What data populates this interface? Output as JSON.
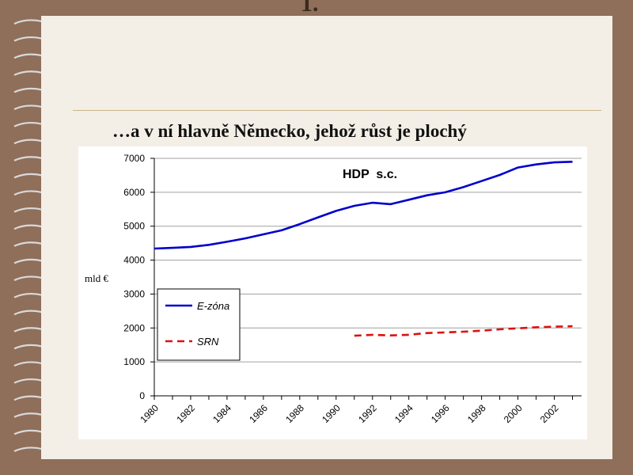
{
  "slide": {
    "title": "1.",
    "subtitle": "…a v ní hlavně Německo, jehož růst je plochý"
  },
  "colors": {
    "background": "#8f6e5a",
    "page": "#f3efe6",
    "ezone": "#0000cc",
    "srn": "#dd1111"
  },
  "chart_data": {
    "type": "line",
    "title": "HDP  s.c.",
    "ylabel": "mld €",
    "xlabel": "",
    "ylim": [
      0,
      7000
    ],
    "yticks": [
      "0",
      "1000",
      "2000",
      "3000",
      "4000",
      "5000",
      "6000",
      "7000"
    ],
    "xlim": [
      1980,
      2003
    ],
    "xticks": [
      "1980",
      "1982",
      "1984",
      "1986",
      "1988",
      "1990",
      "1992",
      "1994",
      "1996",
      "1998",
      "2000",
      "2002"
    ],
    "grid": true,
    "legend_position": "left-middle",
    "series": [
      {
        "name": "E-zóna",
        "style": "solid",
        "color": "#0000cc",
        "x": [
          1980,
          1981,
          1982,
          1983,
          1984,
          1985,
          1986,
          1987,
          1988,
          1989,
          1990,
          1991,
          1992,
          1993,
          1994,
          1995,
          1996,
          1997,
          1998,
          1999,
          2000,
          2001,
          2002,
          2003
        ],
        "y": [
          4340,
          4360,
          4390,
          4450,
          4540,
          4640,
          4760,
          4880,
          5060,
          5260,
          5450,
          5600,
          5690,
          5650,
          5780,
          5910,
          6000,
          6150,
          6330,
          6510,
          6730,
          6820,
          6880,
          6900
        ]
      },
      {
        "name": "SRN",
        "style": "dashed",
        "color": "#dd1111",
        "x": [
          1991,
          1992,
          1993,
          1994,
          1995,
          1996,
          1997,
          1998,
          1999,
          2000,
          2001,
          2002,
          2003
        ],
        "y": [
          1770,
          1800,
          1780,
          1800,
          1850,
          1870,
          1890,
          1920,
          1960,
          1990,
          2020,
          2040,
          2050
        ]
      }
    ]
  }
}
